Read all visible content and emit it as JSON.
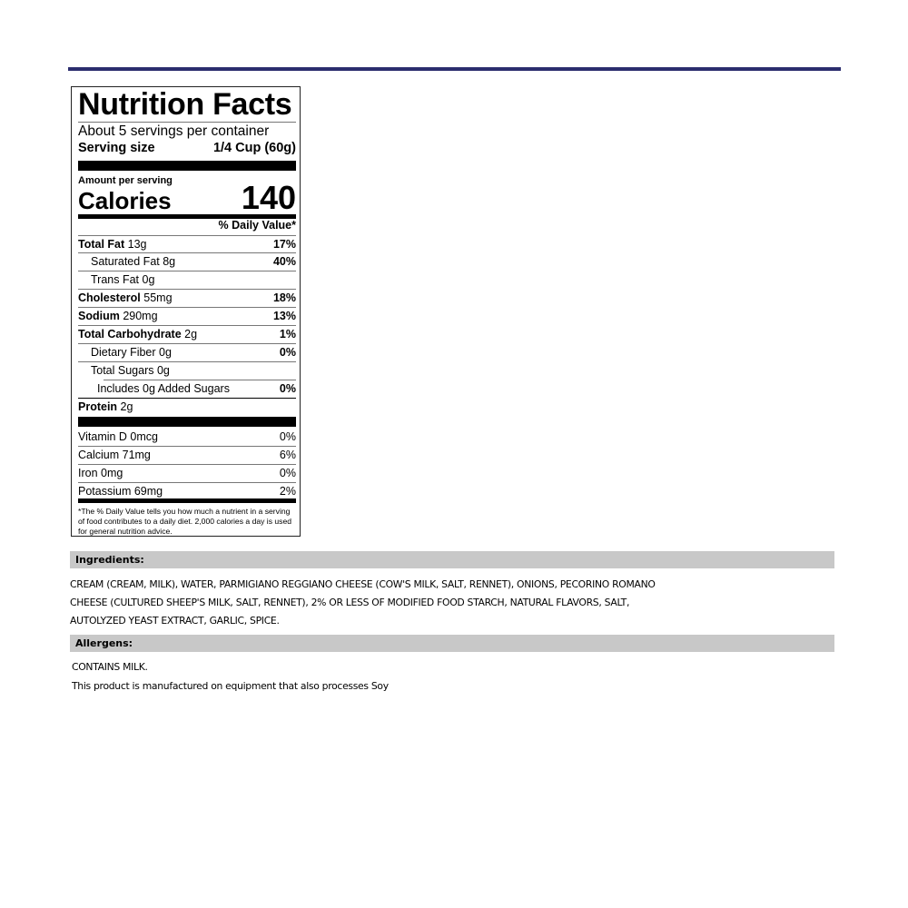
{
  "colors": {
    "top_rule": "#2b2d6e",
    "section_bar": "#c8c8c8"
  },
  "label": {
    "title": "Nutrition Facts",
    "servings": "About 5 servings per container",
    "serving_size_label": "Serving size",
    "serving_size_value": "1/4 Cup (60g)",
    "amount_per_serving": "Amount per serving",
    "calories_label": "Calories",
    "calories_value": "140",
    "daily_value_header": "% Daily Value*",
    "nutrients": [
      {
        "name": "Total Fat",
        "amount": "13g",
        "dv": "17%"
      },
      {
        "name": "Saturated Fat",
        "amount": "8g",
        "dv": "40%"
      },
      {
        "name": "Trans Fat",
        "amount": "0g",
        "dv": ""
      },
      {
        "name": "Cholesterol",
        "amount": "55mg",
        "dv": "18%"
      },
      {
        "name": "Sodium",
        "amount": "290mg",
        "dv": "13%"
      },
      {
        "name": "Total Carbohydrate",
        "amount": "2g",
        "dv": "1%"
      },
      {
        "name": "Dietary Fiber",
        "amount": "0g",
        "dv": "0%"
      },
      {
        "name": "Total Sugars",
        "amount": "0g",
        "dv": ""
      },
      {
        "name": "Includes 0g Added Sugars",
        "amount": "",
        "dv": "0%"
      },
      {
        "name": "Protein",
        "amount": "2g",
        "dv": ""
      }
    ],
    "vitamins": [
      {
        "name": "Vitamin D 0mcg",
        "dv": "0%"
      },
      {
        "name": "Calcium 71mg",
        "dv": "6%"
      },
      {
        "name": "Iron 0mg",
        "dv": "0%"
      },
      {
        "name": "Potassium 69mg",
        "dv": "2%"
      }
    ],
    "footnote": "*The % Daily Value tells you how much a nutrient in a serving of food contributes to a daily diet. 2,000 calories a day is used for general nutrition advice."
  },
  "ingredients": {
    "heading": "Ingredients:",
    "lines": [
      "CREAM (CREAM, MILK), WATER, PARMIGIANO REGGIANO CHEESE (COW'S MILK, SALT, RENNET), ONIONS, PECORINO ROMANO",
      "CHEESE (CULTURED SHEEP'S MILK, SALT, RENNET), 2% OR LESS OF MODIFIED FOOD STARCH, NATURAL FLAVORS, SALT,",
      "AUTOLYZED YEAST EXTRACT, GARLIC, SPICE."
    ]
  },
  "allergens": {
    "heading": "Allergens:",
    "lines": [
      "CONTAINS MILK.",
      "This product is manufactured on equipment that also processes Soy"
    ]
  }
}
